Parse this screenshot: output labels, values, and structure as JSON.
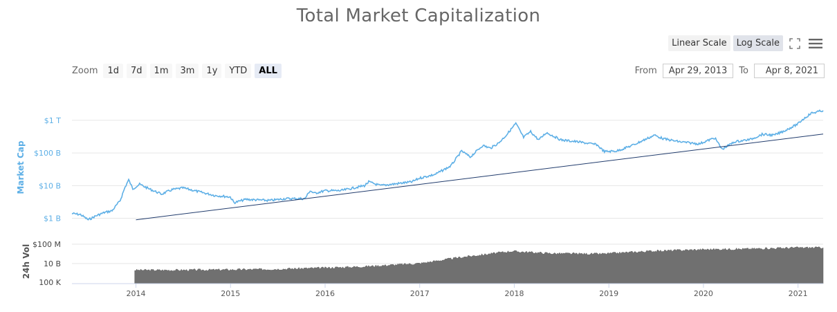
{
  "title": "Total Market Capitalization",
  "toolbar": {
    "linear_label": "Linear Scale",
    "log_label": "Log Scale",
    "active_scale": "log",
    "icons": [
      "fullscreen-icon",
      "menu-icon"
    ]
  },
  "zoom": {
    "label": "Zoom",
    "buttons": [
      "1d",
      "7d",
      "1m",
      "3m",
      "1y",
      "YTD",
      "ALL"
    ],
    "active": "ALL"
  },
  "range": {
    "from_label": "From",
    "from_value": "Apr 29, 2013",
    "to_label": "To",
    "to_value": "Apr 8, 2021"
  },
  "colors": {
    "market_cap": "#5dafe6",
    "volume": "#707070",
    "trendline": "#1f3a6b",
    "grid": "#e6e6e6"
  },
  "chart_data": {
    "type": "line",
    "title": "Total Market Capitalization",
    "x_range": [
      "2013-04-29",
      "2021-04-08"
    ],
    "x_ticks": [
      "2014",
      "2015",
      "2016",
      "2017",
      "2018",
      "2019",
      "2020",
      "2021"
    ],
    "grid": true,
    "log_scale": true,
    "market_cap": {
      "ylabel": "Market Cap",
      "y_ticks": [
        "$1 B",
        "$10 B",
        "$100 B",
        "$1 T"
      ],
      "ylim_log10": [
        8.8,
        12.4
      ],
      "points": [
        [
          "2013-04-29",
          1400000000.0
        ],
        [
          "2013-06-01",
          1300000000.0
        ],
        [
          "2013-07-01",
          900000000.0
        ],
        [
          "2013-08-01",
          1200000000.0
        ],
        [
          "2013-09-01",
          1500000000.0
        ],
        [
          "2013-10-01",
          1700000000.0
        ],
        [
          "2013-11-01",
          3500000000.0
        ],
        [
          "2013-11-20",
          9000000000.0
        ],
        [
          "2013-12-04",
          15000000000.0
        ],
        [
          "2013-12-20",
          8000000000.0
        ],
        [
          "2014-01-15",
          11000000000.0
        ],
        [
          "2014-02-20",
          8000000000.0
        ],
        [
          "2014-04-10",
          5500000000.0
        ],
        [
          "2014-05-20",
          7500000000.0
        ],
        [
          "2014-07-01",
          8500000000.0
        ],
        [
          "2014-09-01",
          6500000000.0
        ],
        [
          "2014-11-01",
          5000000000.0
        ],
        [
          "2014-12-31",
          4500000000.0
        ],
        [
          "2015-01-15",
          3000000000.0
        ],
        [
          "2015-03-01",
          3800000000.0
        ],
        [
          "2015-06-01",
          3500000000.0
        ],
        [
          "2015-08-01",
          4000000000.0
        ],
        [
          "2015-10-15",
          4000000000.0
        ],
        [
          "2015-11-04",
          7000000000.0
        ],
        [
          "2015-11-20",
          5800000000.0
        ],
        [
          "2016-01-01",
          7000000000.0
        ],
        [
          "2016-03-01",
          7000000000.0
        ],
        [
          "2016-06-01",
          10000000000.0
        ],
        [
          "2016-06-18",
          13000000000.0
        ],
        [
          "2016-08-01",
          10000000000.0
        ],
        [
          "2016-12-01",
          13000000000.0
        ],
        [
          "2017-01-01",
          17000000000.0
        ],
        [
          "2017-03-01",
          22000000000.0
        ],
        [
          "2017-05-01",
          40000000000.0
        ],
        [
          "2017-06-12",
          115000000000.0
        ],
        [
          "2017-07-15",
          75000000000.0
        ],
        [
          "2017-09-01",
          170000000000.0
        ],
        [
          "2017-10-01",
          140000000000.0
        ],
        [
          "2017-11-01",
          200000000000.0
        ],
        [
          "2017-12-01",
          350000000000.0
        ],
        [
          "2018-01-07",
          800000000000.0
        ],
        [
          "2018-02-06",
          300000000000.0
        ],
        [
          "2018-03-05",
          450000000000.0
        ],
        [
          "2018-04-05",
          250000000000.0
        ],
        [
          "2018-05-05",
          420000000000.0
        ],
        [
          "2018-07-01",
          250000000000.0
        ],
        [
          "2018-09-01",
          220000000000.0
        ],
        [
          "2018-11-15",
          180000000000.0
        ],
        [
          "2018-12-15",
          110000000000.0
        ],
        [
          "2019-02-01",
          115000000000.0
        ],
        [
          "2019-04-01",
          170000000000.0
        ],
        [
          "2019-06-26",
          350000000000.0
        ],
        [
          "2019-08-01",
          270000000000.0
        ],
        [
          "2019-10-01",
          220000000000.0
        ],
        [
          "2019-12-15",
          190000000000.0
        ],
        [
          "2020-02-14",
          290000000000.0
        ],
        [
          "2020-03-13",
          130000000000.0
        ],
        [
          "2020-05-01",
          220000000000.0
        ],
        [
          "2020-07-01",
          260000000000.0
        ],
        [
          "2020-08-15",
          370000000000.0
        ],
        [
          "2020-10-01",
          350000000000.0
        ],
        [
          "2020-11-15",
          500000000000.0
        ],
        [
          "2020-12-31",
          770000000000.0
        ],
        [
          "2021-01-15",
          1000000000000.0
        ],
        [
          "2021-02-21",
          1650000000000.0
        ],
        [
          "2021-03-15",
          1800000000000.0
        ],
        [
          "2021-04-08",
          2000000000000.0
        ]
      ],
      "trendline": [
        [
          "2014-01-01",
          900000000.0
        ],
        [
          "2021-04-08",
          380000000000.0
        ]
      ]
    },
    "volume": {
      "ylabel": "24h Vol",
      "y_ticks": [
        "100 K",
        "10 B",
        "$100 M"
      ],
      "points": [
        [
          "2013-12-27",
          0.3
        ],
        [
          "2014-06-01",
          0.3
        ],
        [
          "2015-01-01",
          0.31
        ],
        [
          "2015-06-01",
          0.32
        ],
        [
          "2016-01-01",
          0.35
        ],
        [
          "2016-06-01",
          0.38
        ],
        [
          "2017-01-01",
          0.45
        ],
        [
          "2017-06-01",
          0.58
        ],
        [
          "2017-12-20",
          0.72
        ],
        [
          "2018-06-01",
          0.67
        ],
        [
          "2018-12-01",
          0.66
        ],
        [
          "2019-06-01",
          0.72
        ],
        [
          "2020-01-01",
          0.76
        ],
        [
          "2020-06-01",
          0.77
        ],
        [
          "2021-01-01",
          0.8
        ],
        [
          "2021-04-08",
          0.8
        ]
      ]
    }
  }
}
